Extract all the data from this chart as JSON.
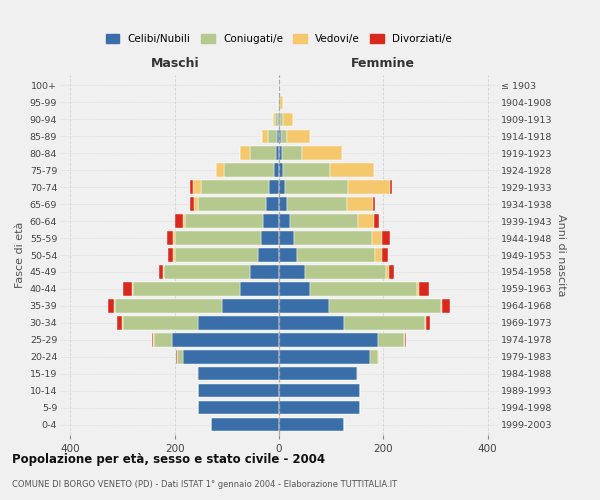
{
  "age_groups": [
    "0-4",
    "5-9",
    "10-14",
    "15-19",
    "20-24",
    "25-29",
    "30-34",
    "35-39",
    "40-44",
    "45-49",
    "50-54",
    "55-59",
    "60-64",
    "65-69",
    "70-74",
    "75-79",
    "80-84",
    "85-89",
    "90-94",
    "95-99",
    "100+"
  ],
  "birth_years": [
    "1999-2003",
    "1994-1998",
    "1989-1993",
    "1984-1988",
    "1979-1983",
    "1974-1978",
    "1969-1973",
    "1964-1968",
    "1959-1963",
    "1954-1958",
    "1949-1953",
    "1944-1948",
    "1939-1943",
    "1934-1938",
    "1929-1933",
    "1924-1928",
    "1919-1923",
    "1914-1918",
    "1909-1913",
    "1904-1908",
    "≤ 1903"
  ],
  "males": {
    "celibi": [
      130,
      155,
      155,
      155,
      185,
      205,
      155,
      110,
      75,
      55,
      40,
      35,
      30,
      25,
      20,
      10,
      5,
      3,
      2,
      0,
      0
    ],
    "coniugati": [
      0,
      0,
      0,
      2,
      10,
      35,
      145,
      205,
      205,
      165,
      160,
      165,
      150,
      130,
      130,
      95,
      50,
      18,
      5,
      1,
      0
    ],
    "vedovi": [
      0,
      0,
      0,
      0,
      1,
      2,
      2,
      2,
      2,
      2,
      3,
      4,
      5,
      8,
      15,
      15,
      20,
      12,
      5,
      1,
      0
    ],
    "divorziati": [
      0,
      0,
      0,
      0,
      1,
      2,
      8,
      10,
      18,
      8,
      10,
      10,
      15,
      8,
      5,
      0,
      0,
      0,
      0,
      0,
      0
    ]
  },
  "females": {
    "nubili": [
      125,
      155,
      155,
      150,
      175,
      190,
      125,
      95,
      60,
      50,
      35,
      28,
      22,
      15,
      12,
      8,
      5,
      3,
      2,
      1,
      0
    ],
    "coniugate": [
      0,
      0,
      0,
      2,
      15,
      50,
      155,
      215,
      205,
      155,
      150,
      150,
      130,
      115,
      120,
      90,
      40,
      12,
      5,
      1,
      0
    ],
    "vedove": [
      0,
      0,
      0,
      0,
      1,
      2,
      2,
      2,
      3,
      5,
      12,
      20,
      30,
      50,
      80,
      85,
      75,
      45,
      20,
      5,
      1
    ],
    "divorziate": [
      0,
      0,
      0,
      0,
      1,
      2,
      8,
      15,
      20,
      10,
      12,
      15,
      10,
      5,
      5,
      0,
      0,
      0,
      0,
      0,
      0
    ]
  },
  "colors": {
    "celibi": "#3a6ea8",
    "coniugati": "#b5c98e",
    "vedovi": "#f5c86e",
    "divorziati": "#d9291c"
  },
  "title": "Popolazione per età, sesso e stato civile - 2004",
  "subtitle": "COMUNE DI BORGO VENETO (PD) - Dati ISTAT 1° gennaio 2004 - Elaborazione TUTTITALIA.IT",
  "ylabel_left": "Fasce di età",
  "ylabel_right": "Anni di nascita",
  "xlabel_left": "Maschi",
  "xlabel_right": "Femmine",
  "xlim": 420,
  "xticks": [
    -400,
    -200,
    0,
    200,
    400
  ],
  "xtick_labels": [
    "400",
    "200",
    "0",
    "200",
    "400"
  ],
  "legend_labels": [
    "Celibi/Nubili",
    "Coniugati/e",
    "Vedovi/e",
    "Divorziati/e"
  ],
  "bg_color": "#f0f0f0"
}
